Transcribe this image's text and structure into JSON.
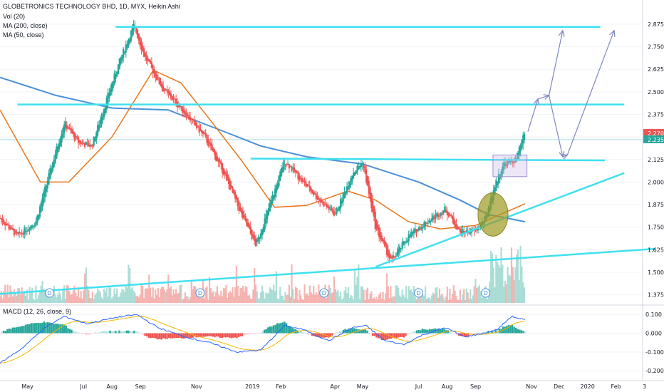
{
  "header": {
    "title": "GLOBETRONICS TECHNOLOGY BHD, 1D, MYX, Heikin Ashi",
    "vol_label": "Vol (20)",
    "ma200_label": "MA (200, close)",
    "ma50_label": "MA (50, close)",
    "macd_label": "MACD (12, 26, close, 9)"
  },
  "colors": {
    "up": "#26a69a",
    "down": "#ef5350",
    "ma200": "#4a90d9",
    "ma50": "#e8751a",
    "trend": "#3fe0f0",
    "arrow": "#7c86c2",
    "macd": "#2962ff",
    "signal": "#f5b800",
    "ellipse_fill": "#9e9a22",
    "box": "#c9b8e8"
  },
  "price_axis": {
    "ticks": [
      "2.875",
      "2.750",
      "2.625",
      "2.500",
      "2.375",
      "2.250",
      "2.125",
      "2.000",
      "1.875",
      "1.750",
      "1.625",
      "1.500",
      "1.375"
    ],
    "last_price": "2.270",
    "ma_value": "2.235",
    "range": [
      1.33,
      2.93
    ]
  },
  "macd_axis": {
    "ticks": [
      "0.100",
      "0.000",
      "-0.100",
      "-0.200"
    ],
    "range": [
      -0.245,
      0.135
    ]
  },
  "time_axis": {
    "labels": [
      "May",
      "Jul",
      "Aug",
      "Sep",
      "Nov",
      "2019",
      "Feb",
      "Apr",
      "May",
      "Jul",
      "Aug",
      "Sep",
      "Nov",
      "Dec",
      "2020",
      "Feb",
      "3"
    ]
  },
  "dividend_markers": [
    "D",
    "D",
    "D",
    "D",
    "D"
  ],
  "chart_data": {
    "type": "candlestick",
    "title": "GLOBETRONICS TECHNOLOGY BHD, 1D, MYX, Heikin Ashi",
    "x_range": [
      "2018-04",
      "2020-03"
    ],
    "price_anchors": [
      [
        "2018-04-01",
        1.8
      ],
      [
        "2018-04-20",
        1.7
      ],
      [
        "2018-05-10",
        1.78
      ],
      [
        "2018-05-25",
        2.05
      ],
      [
        "2018-06-10",
        2.33
      ],
      [
        "2018-06-25",
        2.22
      ],
      [
        "2018-07-10",
        2.2
      ],
      [
        "2018-07-25",
        2.44
      ],
      [
        "2018-08-10",
        2.68
      ],
      [
        "2018-08-25",
        2.87
      ],
      [
        "2018-09-05",
        2.7
      ],
      [
        "2018-09-25",
        2.52
      ],
      [
        "2018-10-20",
        2.38
      ],
      [
        "2018-11-10",
        2.25
      ],
      [
        "2018-12-01",
        2.05
      ],
      [
        "2018-12-20",
        1.82
      ],
      [
        "2019-01-05",
        1.65
      ],
      [
        "2019-01-25",
        1.95
      ],
      [
        "2019-02-05",
        2.12
      ],
      [
        "2019-02-25",
        2.0
      ],
      [
        "2019-03-15",
        1.9
      ],
      [
        "2019-04-01",
        1.82
      ],
      [
        "2019-04-20",
        2.05
      ],
      [
        "2019-05-01",
        2.11
      ],
      [
        "2019-05-15",
        1.75
      ],
      [
        "2019-06-01",
        1.56
      ],
      [
        "2019-06-20",
        1.7
      ],
      [
        "2019-07-10",
        1.78
      ],
      [
        "2019-07-30",
        1.85
      ],
      [
        "2019-08-15",
        1.72
      ],
      [
        "2019-09-01",
        1.73
      ],
      [
        "2019-09-12",
        1.8
      ],
      [
        "2019-09-20",
        1.95
      ],
      [
        "2019-10-01",
        2.1
      ],
      [
        "2019-10-15",
        2.12
      ],
      [
        "2019-10-25",
        2.28
      ]
    ],
    "ma200": [
      [
        "2018-04-01",
        2.58
      ],
      [
        "2018-06-01",
        2.48
      ],
      [
        "2018-08-01",
        2.41
      ],
      [
        "2018-10-01",
        2.4
      ],
      [
        "2018-12-01",
        2.28
      ],
      [
        "2019-01-10",
        2.2
      ],
      [
        "2019-03-01",
        2.14
      ],
      [
        "2019-05-01",
        2.1
      ],
      [
        "2019-07-01",
        2.0
      ],
      [
        "2019-08-15",
        1.9
      ],
      [
        "2019-09-15",
        1.82
      ],
      [
        "2019-10-25",
        1.78
      ]
    ],
    "ma50": [
      [
        "2018-04-01",
        2.4
      ],
      [
        "2018-05-15",
        2.0
      ],
      [
        "2018-06-15",
        2.0
      ],
      [
        "2018-08-01",
        2.25
      ],
      [
        "2018-09-15",
        2.62
      ],
      [
        "2018-10-15",
        2.55
      ],
      [
        "2018-11-15",
        2.35
      ],
      [
        "2018-12-20",
        2.12
      ],
      [
        "2019-01-25",
        1.86
      ],
      [
        "2019-03-01",
        1.87
      ],
      [
        "2019-04-15",
        1.95
      ],
      [
        "2019-05-15",
        1.9
      ],
      [
        "2019-06-20",
        1.78
      ],
      [
        "2019-07-25",
        1.74
      ],
      [
        "2019-09-01",
        1.76
      ],
      [
        "2019-10-25",
        1.88
      ]
    ],
    "annotations": {
      "horizontal_lines": [
        [
          [
            "2018-08-05",
            2.86
          ],
          [
            "2020-01-15",
            2.86
          ]
        ],
        [
          [
            "2018-04-20",
            2.43
          ],
          [
            "2020-02-10",
            2.43
          ]
        ],
        [
          [
            "2018-12-30",
            2.13
          ],
          [
            "2020-01-20",
            2.12
          ]
        ]
      ],
      "trend_lines": [
        [
          [
            "2018-04-01",
            1.38
          ],
          [
            "2020-03-15",
            1.63
          ]
        ],
        [
          [
            "2019-05-15",
            1.53
          ],
          [
            "2020-02-10",
            2.05
          ]
        ]
      ],
      "arrows": [
        [
          [
            "2019-10-28",
            2.28
          ],
          [
            "2019-11-08",
            2.46
          ],
          [
            "2019-11-20",
            2.48
          ],
          [
            "2019-12-05",
            2.84
          ]
        ],
        [
          [
            "2019-11-20",
            2.48
          ],
          [
            "2019-12-05",
            2.14
          ],
          [
            "2019-12-10",
            2.15
          ],
          [
            "2020-01-30",
            2.84
          ]
        ]
      ],
      "range_box": [
        [
          "2019-09-20",
          2.15
        ],
        [
          "2019-10-27",
          2.03
        ]
      ],
      "ellipse": [
        [
          "2019-09-20",
          1.82
        ],
        0.12
      ]
    }
  }
}
